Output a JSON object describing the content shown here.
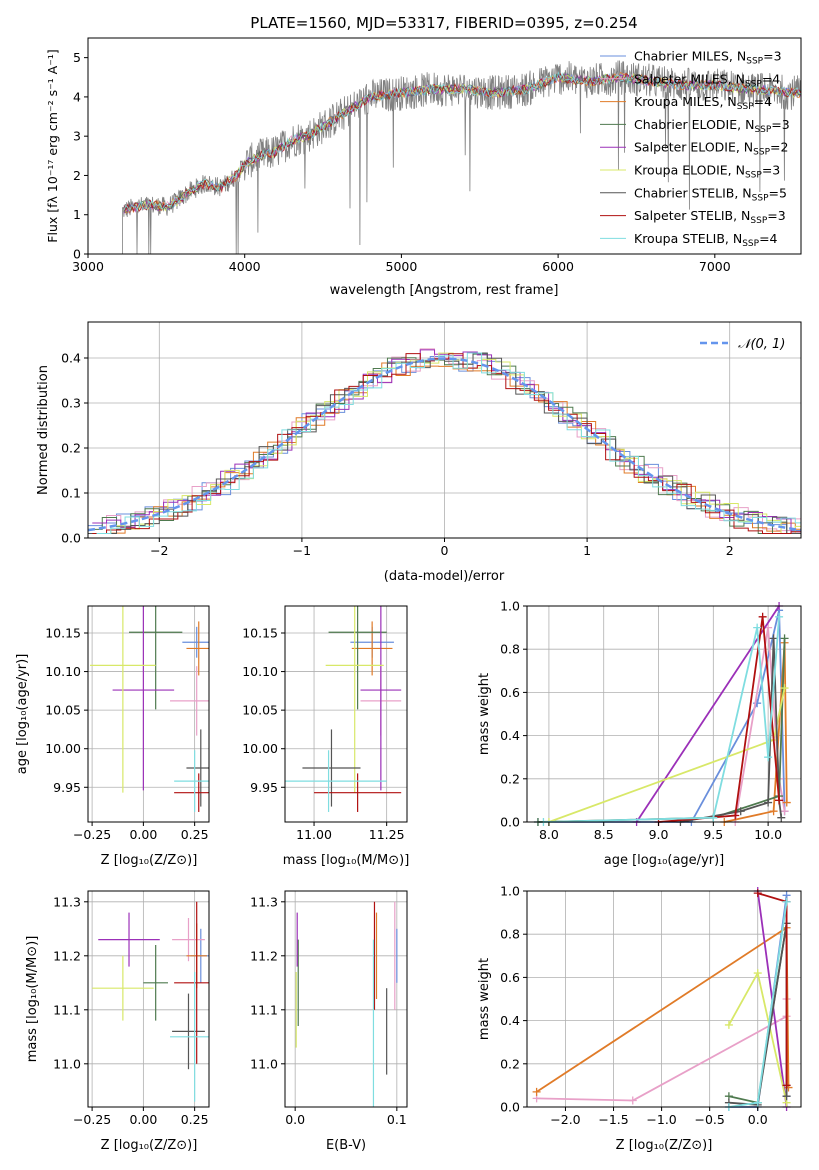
{
  "colors": {
    "spectrum": "#808080",
    "grid": "#b0b0b0",
    "axis": "#000000",
    "normal": "#6495ed",
    "models": [
      "#6a8fdc",
      "#e8a0c8",
      "#e07b28",
      "#4f7a4f",
      "#9b30b8",
      "#d8e868",
      "#555555",
      "#b01010",
      "#7fdde0"
    ]
  },
  "models": [
    {
      "label": "Chabrier MILES, N",
      "n": "=3"
    },
    {
      "label": "Salpeter MILES, N",
      "n": "=4"
    },
    {
      "label": "Kroupa MILES, N",
      "n": "=4"
    },
    {
      "label": "Chabrier ELODIE, N",
      "n": "=3"
    },
    {
      "label": "Salpeter ELODIE, N",
      "n": "=2"
    },
    {
      "label": "Kroupa ELODIE, N",
      "n": "=3"
    },
    {
      "label": "Chabrier STELIB, N",
      "n": "=5"
    },
    {
      "label": "Salpeter STELIB, N",
      "n": "=3"
    },
    {
      "label": "Kroupa STELIB, N",
      "n": "=4"
    }
  ],
  "chart_data": [
    {
      "id": "spectrum",
      "type": "line",
      "title": "PLATE=1560, MJD=53317, FIBERID=0395, z=0.254",
      "xlabel": "wavelength [Angstrom, rest frame]",
      "ylabel": "Flux [fλ 10⁻¹⁷ erg cm⁻² s⁻¹ A⁻¹]",
      "xlim": [
        3000,
        7550
      ],
      "ylim": [
        0,
        5.5
      ],
      "xticks": [
        3000,
        4000,
        5000,
        6000,
        7000
      ],
      "yticks": [
        0,
        1,
        2,
        3,
        4,
        5
      ],
      "legend": "top-right",
      "grid": false,
      "continuum": {
        "wavelength": [
          3220,
          3300,
          3400,
          3500,
          3550,
          3650,
          3750,
          3850,
          3950,
          4000,
          4100,
          4200,
          4300,
          4400,
          4600,
          4800,
          5000,
          5200,
          5400,
          5600,
          5800,
          6000,
          6200,
          6400,
          6600,
          6800,
          7000,
          7200,
          7550
        ],
        "flux": [
          1.1,
          1.2,
          1.25,
          1.2,
          1.3,
          1.6,
          1.8,
          1.7,
          2.0,
          2.3,
          2.5,
          2.6,
          2.9,
          3.0,
          3.5,
          4.0,
          4.1,
          4.2,
          4.2,
          4.1,
          4.2,
          4.5,
          4.4,
          4.5,
          4.4,
          4.3,
          4.3,
          4.2,
          4.1
        ]
      }
    },
    {
      "id": "residuals",
      "type": "histogram",
      "xlabel": "(data-model)/error",
      "ylabel": "Normed distribution",
      "xlim": [
        -2.5,
        2.5
      ],
      "ylim": [
        0,
        0.48
      ],
      "xticks": [
        -2,
        -1,
        0,
        1,
        2
      ],
      "yticks": [
        0.0,
        0.1,
        0.2,
        0.3,
        0.4
      ],
      "grid": true,
      "legend": "top-right",
      "reference": {
        "name": "𝒩(0, 1)",
        "mean": 0,
        "sigma": 1
      },
      "bin_width": 0.1
    },
    {
      "id": "age_vs_z",
      "type": "scatter",
      "xlabel": "Z [log₁₀(Z/Z⊙)]",
      "ylabel": "age  [log₁₀(age/yr)]",
      "xlim": [
        -0.27,
        0.32
      ],
      "ylim": [
        9.905,
        10.185
      ],
      "xticks": [
        -0.25,
        0.0,
        0.25
      ],
      "yticks": [
        9.95,
        10.0,
        10.05,
        10.1,
        10.15
      ],
      "points": [
        {
          "x": 0.26,
          "y": 10.138,
          "xerr": 0.07,
          "yerr": 0.02
        },
        {
          "x": 0.26,
          "y": 10.062,
          "xerr": 0.13,
          "yerr": 0.045
        },
        {
          "x": 0.27,
          "y": 10.13,
          "xerr": 0.06,
          "yerr": 0.035
        },
        {
          "x": 0.06,
          "y": 10.151,
          "xerr": 0.13,
          "yerr": 0.1
        },
        {
          "x": 0.0,
          "y": 10.076,
          "xerr": 0.15,
          "yerr": 0.13
        },
        {
          "x": -0.1,
          "y": 10.108,
          "xerr": 0.16,
          "yerr": 0.165
        },
        {
          "x": 0.28,
          "y": 9.975,
          "xerr": 0.07,
          "yerr": 0.05
        },
        {
          "x": 0.27,
          "y": 9.943,
          "xerr": 0.12,
          "yerr": 0.025
        },
        {
          "x": 0.25,
          "y": 9.958,
          "xerr": 0.1,
          "yerr": 0.04
        }
      ]
    },
    {
      "id": "age_vs_mass",
      "type": "scatter",
      "xlabel": "mass [log₁₀(M/M⊙)]",
      "ylabel": "",
      "xlim": [
        10.9,
        11.32
      ],
      "ylim": [
        9.905,
        10.185
      ],
      "xticks": [
        11.0,
        11.25
      ],
      "xticklabels": [
        "11.00",
        "11.25"
      ],
      "yticks": [
        9.95,
        10.0,
        10.05,
        10.1,
        10.15
      ],
      "points": [
        {
          "x": 11.2,
          "y": 10.138,
          "xerr": 0.075,
          "yerr": 0.02
        },
        {
          "x": 11.23,
          "y": 10.062,
          "xerr": 0.07,
          "yerr": 0.045
        },
        {
          "x": 11.2,
          "y": 10.13,
          "xerr": 0.07,
          "yerr": 0.035
        },
        {
          "x": 11.15,
          "y": 10.151,
          "xerr": 0.1,
          "yerr": 0.1
        },
        {
          "x": 11.23,
          "y": 10.076,
          "xerr": 0.07,
          "yerr": 0.13
        },
        {
          "x": 11.14,
          "y": 10.108,
          "xerr": 0.1,
          "yerr": 0.165
        },
        {
          "x": 11.06,
          "y": 9.975,
          "xerr": 0.1,
          "yerr": 0.05
        },
        {
          "x": 11.15,
          "y": 9.943,
          "xerr": 0.15,
          "yerr": 0.025
        },
        {
          "x": 11.05,
          "y": 9.958,
          "xerr": 0.2,
          "yerr": 0.04
        }
      ]
    },
    {
      "id": "weight_vs_age",
      "type": "line",
      "xlabel": "age  [log₁₀(age/yr)]",
      "ylabel": "mass weight",
      "xlim": [
        7.8,
        10.3
      ],
      "ylim": [
        0,
        1.0
      ],
      "xticks": [
        8.0,
        8.5,
        9.0,
        9.5,
        10.0
      ],
      "yticks": [
        0.0,
        0.2,
        0.4,
        0.6,
        0.8,
        1.0
      ],
      "grid": true,
      "series": [
        {
          "x": [
            7.9,
            9.3,
            9.9,
            10.1,
            10.15
          ],
          "y": [
            0,
            0,
            0.55,
            0.98,
            0.05
          ]
        },
        {
          "x": [
            9.7,
            10.0,
            10.1,
            10.15
          ],
          "y": [
            0,
            0.9,
            0.2,
            0.05
          ]
        },
        {
          "x": [
            9.6,
            10.05,
            10.15,
            10.17
          ],
          "y": [
            0,
            0.05,
            0.83,
            0.09
          ]
        },
        {
          "x": [
            7.9,
            9.5,
            10.1,
            10.15
          ],
          "y": [
            0,
            0.02,
            0.12,
            0.85
          ]
        },
        {
          "x": [
            8.8,
            10.1
          ],
          "y": [
            0,
            1.0
          ]
        },
        {
          "x": [
            8.0,
            10.05,
            10.15
          ],
          "y": [
            0,
            0.38,
            0.62
          ]
        },
        {
          "x": [
            9.2,
            9.75,
            10.0,
            10.05,
            10.1,
            10.12
          ],
          "y": [
            0,
            0.05,
            0.09,
            0.85,
            0.1,
            0.02
          ]
        },
        {
          "x": [
            9.0,
            9.7,
            9.95,
            10.1
          ],
          "y": [
            0,
            0.03,
            0.95,
            0.1
          ]
        },
        {
          "x": [
            7.95,
            9.5,
            9.9,
            10.0,
            10.1
          ],
          "y": [
            0,
            0.02,
            0.9,
            0.3,
            0.95
          ]
        }
      ]
    },
    {
      "id": "mass_vs_z",
      "type": "scatter",
      "xlabel": "Z [log₁₀(Z/Z⊙)]",
      "ylabel": "mass [log₁₀(M/M⊙)]",
      "xlim": [
        -0.27,
        0.32
      ],
      "ylim": [
        10.92,
        11.32
      ],
      "xticks": [
        -0.25,
        0.0,
        0.25
      ],
      "yticks": [
        11.0,
        11.1,
        11.2,
        11.3
      ],
      "points": [
        {
          "x": 0.28,
          "y": 11.2,
          "xerr": 0.05,
          "yerr": 0.05
        },
        {
          "x": 0.22,
          "y": 11.23,
          "xerr": 0.08,
          "yerr": 0.04
        },
        {
          "x": 0.26,
          "y": 11.2,
          "xerr": 0.05,
          "yerr": 0.06
        },
        {
          "x": 0.06,
          "y": 11.15,
          "xerr": 0.06,
          "yerr": 0.07
        },
        {
          "x": -0.07,
          "y": 11.23,
          "xerr": 0.15,
          "yerr": 0.05
        },
        {
          "x": -0.1,
          "y": 11.14,
          "xerr": 0.15,
          "yerr": 0.06
        },
        {
          "x": 0.22,
          "y": 11.06,
          "xerr": 0.08,
          "yerr": 0.07
        },
        {
          "x": 0.26,
          "y": 11.15,
          "xerr": 0.11,
          "yerr": 0.15
        },
        {
          "x": 0.25,
          "y": 11.05,
          "xerr": 0.12,
          "yerr": 0.12
        }
      ]
    },
    {
      "id": "mass_vs_ebv",
      "type": "scatter",
      "xlabel": "E(B-V)",
      "ylabel": "",
      "xlim": [
        -0.01,
        0.11
      ],
      "ylim": [
        10.92,
        11.32
      ],
      "xticks": [
        0.0,
        0.1
      ],
      "yticks": [
        11.0,
        11.1,
        11.2,
        11.3
      ],
      "points": [
        {
          "x": 0.1,
          "y": 11.2,
          "xerr": 0,
          "yerr": 0.05
        },
        {
          "x": 0.098,
          "y": 11.2,
          "xerr": 0,
          "yerr": 0.1
        },
        {
          "x": 0.08,
          "y": 11.2,
          "xerr": 0,
          "yerr": 0.08
        },
        {
          "x": 0.003,
          "y": 11.15,
          "xerr": 0,
          "yerr": 0.08
        },
        {
          "x": 0.002,
          "y": 11.23,
          "xerr": 0,
          "yerr": 0.05
        },
        {
          "x": 0.001,
          "y": 11.1,
          "xerr": 0,
          "yerr": 0.07
        },
        {
          "x": 0.09,
          "y": 11.06,
          "xerr": 0,
          "yerr": 0.08
        },
        {
          "x": 0.078,
          "y": 11.2,
          "xerr": 0,
          "yerr": 0.1
        },
        {
          "x": 0.077,
          "y": 11.05,
          "xerr": 0,
          "yerr": 0.18
        }
      ]
    },
    {
      "id": "weight_vs_z",
      "type": "line",
      "xlabel": "Z [log₁₀(Z/Z⊙)]",
      "ylabel": "mass weight",
      "xlim": [
        -2.4,
        0.45
      ],
      "ylim": [
        0,
        1.0
      ],
      "xticks": [
        -2.0,
        -1.5,
        -1.0,
        -0.5,
        0.0
      ],
      "yticks": [
        0.0,
        0.2,
        0.4,
        0.6,
        0.8,
        1.0
      ],
      "grid": true,
      "series": [
        {
          "x": [
            -0.3,
            0.0,
            0.3,
            0.3
          ],
          "y": [
            0,
            0,
            0.98,
            0.05
          ]
        },
        {
          "x": [
            -2.3,
            -1.3,
            0.3,
            0.3
          ],
          "y": [
            0.04,
            0.03,
            0.42,
            0.5
          ]
        },
        {
          "x": [
            -2.3,
            0.3,
            0.32
          ],
          "y": [
            0.07,
            0.83,
            0.09
          ]
        },
        {
          "x": [
            -0.3,
            0.0,
            0.3
          ],
          "y": [
            0.05,
            0.02,
            0.85
          ]
        },
        {
          "x": [
            0.0,
            0.3
          ],
          "y": [
            1.0,
            0.0
          ]
        },
        {
          "x": [
            -0.3,
            0.0,
            0.3
          ],
          "y": [
            0.38,
            0.62,
            0.02
          ]
        },
        {
          "x": [
            -0.3,
            0.0,
            0.3,
            0.3,
            0.3
          ],
          "y": [
            0.02,
            0.01,
            0.85,
            0.1,
            0.05
          ]
        },
        {
          "x": [
            0.0,
            0.3,
            0.3
          ],
          "y": [
            0.99,
            0.95,
            0.1
          ]
        },
        {
          "x": [
            -0.3,
            0.0,
            0.3
          ],
          "y": [
            0.0,
            0.02,
            0.95
          ]
        }
      ]
    }
  ]
}
